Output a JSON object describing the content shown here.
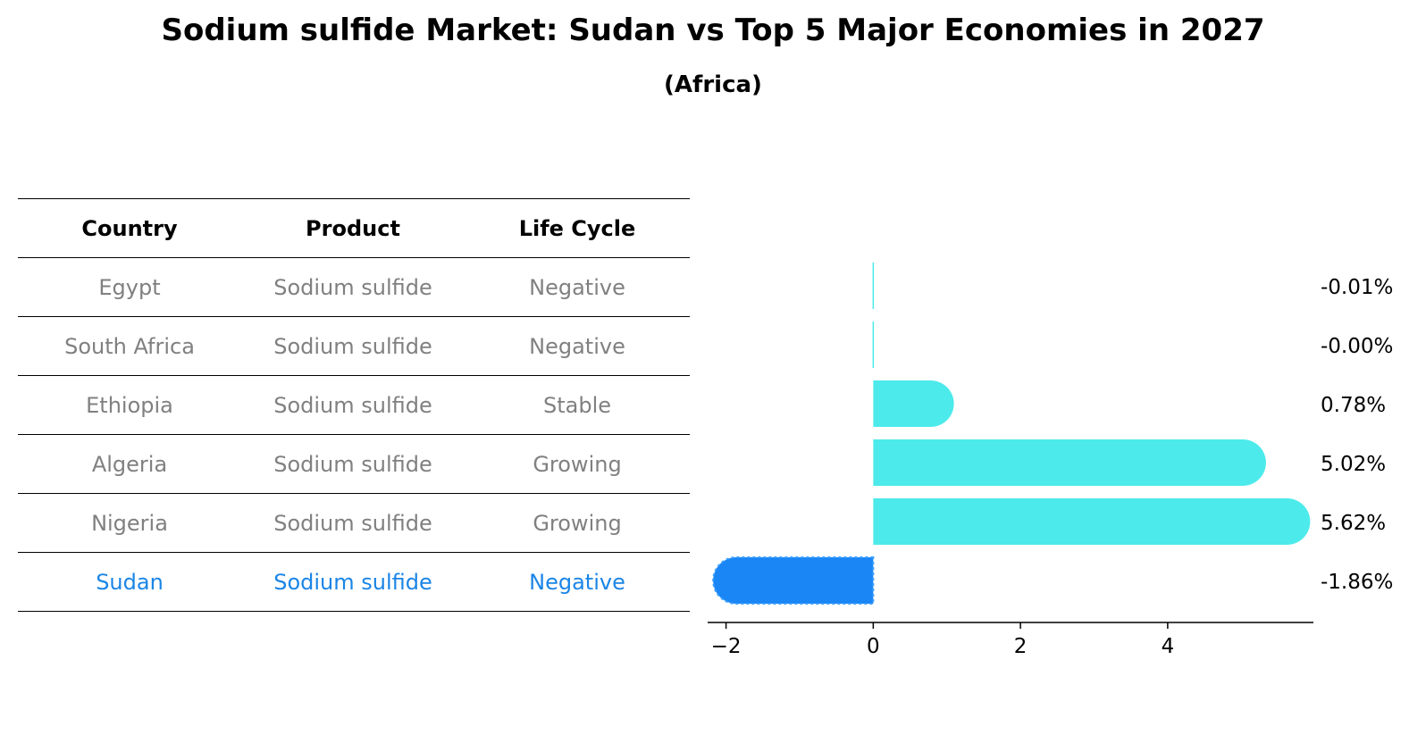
{
  "title": "Sodium sulfide Market: Sudan vs Top 5 Major Economies in 2027",
  "subtitle": "(Africa)",
  "table": {
    "headers": [
      "Country",
      "Product",
      "Life Cycle"
    ],
    "rows": [
      {
        "country": "Egypt",
        "product": "Sodium sulfide",
        "life_cycle": "Negative"
      },
      {
        "country": "South Africa",
        "product": "Sodium sulfide",
        "life_cycle": "Negative"
      },
      {
        "country": "Ethiopia",
        "product": "Sodium sulfide",
        "life_cycle": "Stable"
      },
      {
        "country": "Algeria",
        "product": "Sodium sulfide",
        "life_cycle": "Growing"
      },
      {
        "country": "Nigeria",
        "product": "Sodium sulfide",
        "life_cycle": "Growing"
      },
      {
        "country": "Sudan",
        "product": "Sodium sulfide",
        "life_cycle": "Negative"
      }
    ]
  },
  "colors": {
    "other_rows_text": "#808080",
    "highlight_text": "#1a85e6",
    "bar_default": "#4deaeb",
    "bar_highlight": "#1a85f5"
  },
  "chart_data": {
    "type": "bar",
    "orientation": "horizontal",
    "categories": [
      "Egypt",
      "South Africa",
      "Ethiopia",
      "Algeria",
      "Nigeria",
      "Sudan"
    ],
    "values": [
      -0.01,
      -0.0,
      0.78,
      5.02,
      5.62,
      -1.86
    ],
    "value_labels": [
      "-0.01%",
      "-0.00%",
      "0.78%",
      "5.02%",
      "5.62%",
      "-1.86%"
    ],
    "highlight": "Sudan",
    "xlim": [
      -2.25,
      5.98
    ],
    "xticks": [
      -2,
      0,
      2,
      4
    ],
    "xtick_labels": [
      "−2",
      "0",
      "2",
      "4"
    ],
    "grid": false,
    "legend": "none"
  }
}
